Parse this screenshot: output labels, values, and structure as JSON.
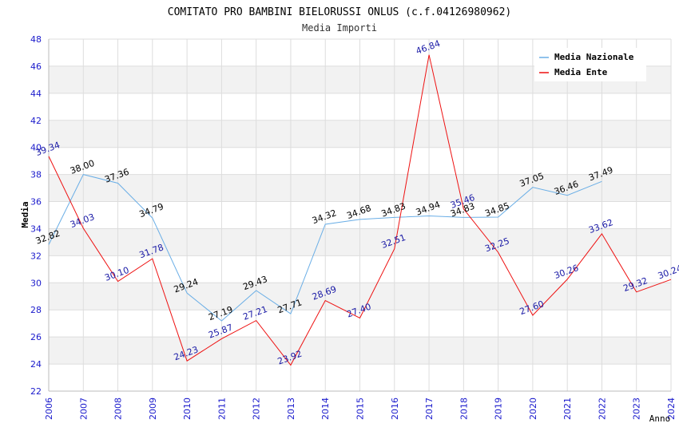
{
  "chart_data": {
    "type": "line",
    "title": "COMITATO PRO BAMBINI BIELORUSSI ONLUS (c.f.04126980962)",
    "subtitle": "Media Importi",
    "xlabel": "Anno",
    "ylabel": "Media",
    "ylim": [
      22,
      48
    ],
    "y_ticks": [
      "22",
      "24",
      "26",
      "28",
      "30",
      "32",
      "34",
      "36",
      "38",
      "40",
      "42",
      "44",
      "46",
      "48"
    ],
    "categories": [
      "2006",
      "2007",
      "2008",
      "2009",
      "2010",
      "2011",
      "2012",
      "2013",
      "2014",
      "2015",
      "2016",
      "2017",
      "2018",
      "2019",
      "2020",
      "2021",
      "2022",
      "2023",
      "2024"
    ],
    "legend_position": "top-right",
    "series": [
      {
        "name": "Media Nazionale",
        "color": "#6aaee6",
        "label_color": "#000000",
        "values": [
          32.82,
          38.0,
          37.36,
          34.79,
          29.24,
          27.19,
          29.43,
          27.71,
          34.32,
          34.68,
          34.83,
          34.94,
          34.83,
          34.85,
          37.05,
          36.46,
          37.49,
          null,
          null
        ],
        "labels": [
          "32.82",
          "38.00",
          "37.36",
          "34.79",
          "29.24",
          "27.19",
          "29.43",
          "27.71",
          "34.32",
          "34.68",
          "34.83",
          "34.94",
          "34.83",
          "34.85",
          "37.05",
          "36.46",
          "37.49",
          null,
          null
        ]
      },
      {
        "name": "Media Ente",
        "color": "#ee1111",
        "label_color": "#1a1aa6",
        "values": [
          39.34,
          34.03,
          30.1,
          31.78,
          24.23,
          25.87,
          27.21,
          23.92,
          28.69,
          27.4,
          32.51,
          46.84,
          35.46,
          32.25,
          27.6,
          30.26,
          33.62,
          29.32,
          30.24
        ],
        "labels": [
          "39.34",
          "34.03",
          "30.10",
          "31.78",
          "24.23",
          "25.87",
          "27.21",
          "23.92",
          "28.69",
          "27.40",
          "32.51",
          "46.84",
          "35.46",
          "32.25",
          "27.60",
          "30.26",
          "33.62",
          "29.32",
          "30.24"
        ]
      }
    ]
  }
}
